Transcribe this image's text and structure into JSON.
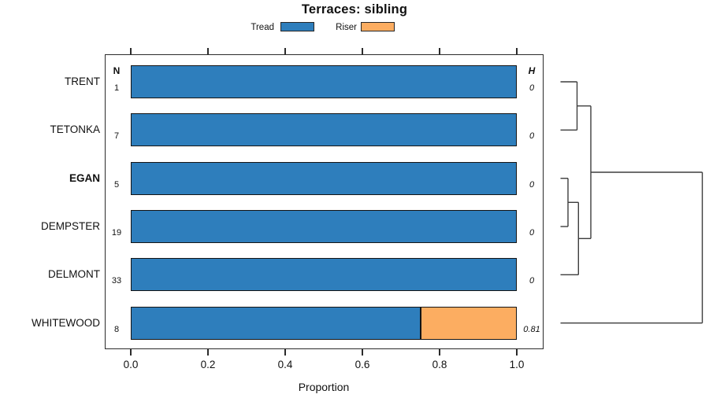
{
  "title": "Terraces: sibling",
  "legend": {
    "items": [
      {
        "label": "Tread",
        "color": "#2E7EBC"
      },
      {
        "label": "Riser",
        "color": "#FCAD61"
      }
    ]
  },
  "chart_data": {
    "type": "bar",
    "orientation": "horizontal",
    "stacked": true,
    "title": "Terraces: sibling",
    "xlabel": "Proportion",
    "xlim": [
      0,
      1
    ],
    "xticks": [
      "0.0",
      "0.2",
      "0.4",
      "0.6",
      "0.8",
      "1.0"
    ],
    "grid": false,
    "legend_position": "top",
    "categories": [
      "TRENT",
      "TETONKA",
      "EGAN",
      "DEMPSTER",
      "DELMONT",
      "WHITEWOOD"
    ],
    "bold_category": "EGAN",
    "series": [
      {
        "name": "Tread",
        "color": "#2E7EBC",
        "values": [
          1,
          1,
          1,
          1,
          1,
          0.75
        ]
      },
      {
        "name": "Riser",
        "color": "#FCAD61",
        "values": [
          0,
          0,
          0,
          0,
          0,
          0.25
        ]
      }
    ],
    "columns": {
      "n": {
        "header": "N",
        "values": [
          "1",
          "7",
          "5",
          "19",
          "33",
          "8"
        ]
      },
      "h": {
        "header": "H",
        "values": [
          "0",
          "0",
          "0",
          "0",
          "0",
          "0.81"
        ]
      }
    },
    "dendrogram": {
      "position": "right",
      "leaf_order": [
        "TRENT",
        "TETONKA",
        "EGAN",
        "DEMPSTER",
        "DELMONT",
        "WHITEWOOD"
      ],
      "merges": [
        {
          "members": [
            "TRENT",
            "TETONKA"
          ],
          "relative_height": "near 0"
        },
        {
          "members": [
            "EGAN",
            "DEMPSTER"
          ],
          "relative_height": "near 0"
        },
        {
          "members": [
            "EGAN+DEMPSTER",
            "DELMONT"
          ],
          "relative_height": "near 0"
        },
        {
          "members": [
            "TRENT+TETONKA",
            "EGAN+DEMPSTER+DELMONT"
          ],
          "relative_height": "low"
        },
        {
          "members": [
            "TRENT+TETONKA+EGAN+DEMPSTER+DELMONT",
            "WHITEWOOD"
          ],
          "relative_height": "max"
        }
      ]
    }
  }
}
